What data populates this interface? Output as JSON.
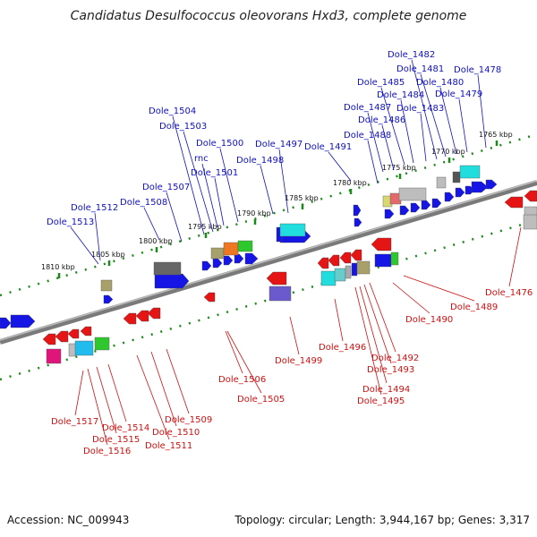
{
  "title": "Candidatus Desulfococcus oleovorans Hxd3, complete genome",
  "accession_text": "Accession: NC_009943",
  "summary_text": "Topology: circular; Length: 3,944,167 bp; Genes: 3,317",
  "colors": {
    "forward_label": "#1010c0",
    "reverse_label": "#d01010",
    "ruler_dots": "#1a8a1a",
    "backbone": "#808080"
  },
  "ruler_ticks": [
    "1810 kbp",
    "1805 kbp",
    "1800 kbp",
    "1795 kbp",
    "1790 kbp",
    "1785 kbp",
    "1780 kbp",
    "1775 kbp",
    "1770 kbp",
    "1765 kbp"
  ],
  "forward_genes": [
    "Dole_1513",
    "Dole_1512",
    "Dole_1508",
    "Dole_1507",
    "Dole_1504",
    "Dole_1503",
    "rnc",
    "Dole_1501",
    "Dole_1500",
    "Dole_1498",
    "Dole_1497",
    "Dole_1491",
    "Dole_1488",
    "Dole_1487",
    "Dole_1486",
    "Dole_1485",
    "Dole_1484",
    "Dole_1483",
    "Dole_1482",
    "Dole_1481",
    "Dole_1480",
    "Dole_1479",
    "Dole_1478"
  ],
  "reverse_genes": [
    "Dole_1517",
    "Dole_1516",
    "Dole_1515",
    "Dole_1514",
    "Dole_1511",
    "Dole_1510",
    "Dole_1509",
    "Dole_1506",
    "Dole_1505",
    "Dole_1499",
    "Dole_1496",
    "Dole_1495",
    "Dole_1494",
    "Dole_1493",
    "Dole_1492",
    "Dole_1490",
    "Dole_1489",
    "Dole_1476"
  ]
}
